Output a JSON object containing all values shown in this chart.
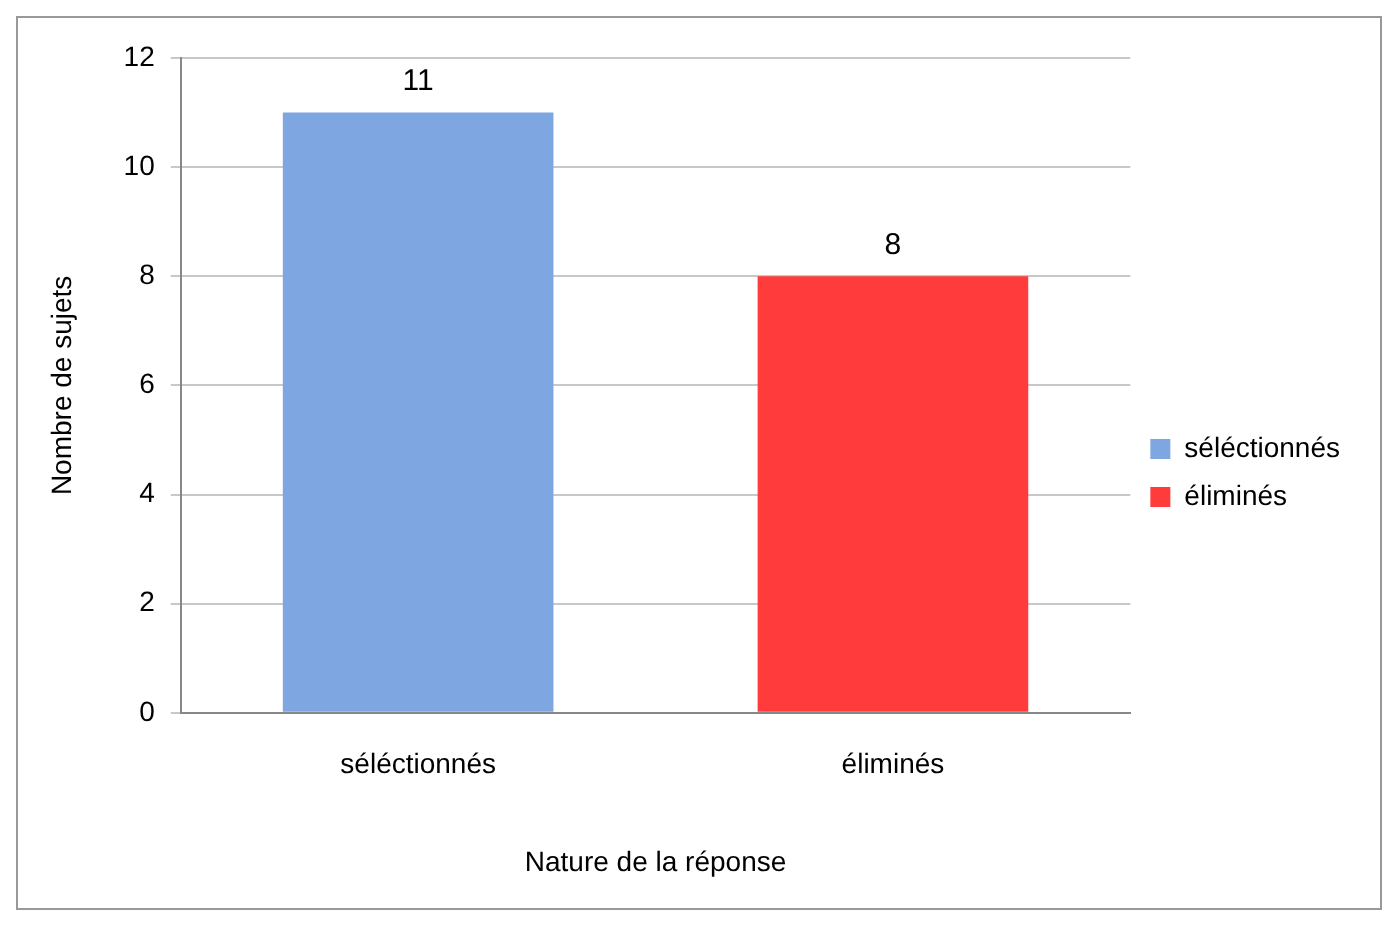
{
  "chart_data": {
    "type": "bar",
    "xlabel": "Nature de la réponse",
    "ylabel": "Nombre de sujets",
    "categories": [
      "séléctionnés",
      "éliminés"
    ],
    "series": [
      {
        "name": "séléctionnés",
        "color": "#7ea6e0",
        "values": [
          11,
          null
        ]
      },
      {
        "name": "éliminés",
        "color": "#ff3b3b",
        "values": [
          null,
          8
        ]
      }
    ],
    "stacked": true,
    "ylim": [
      0,
      12
    ],
    "yticks": [
      0,
      2,
      4,
      6,
      8,
      10,
      12
    ],
    "grid": "y",
    "legend": "right",
    "data_labels": true
  }
}
